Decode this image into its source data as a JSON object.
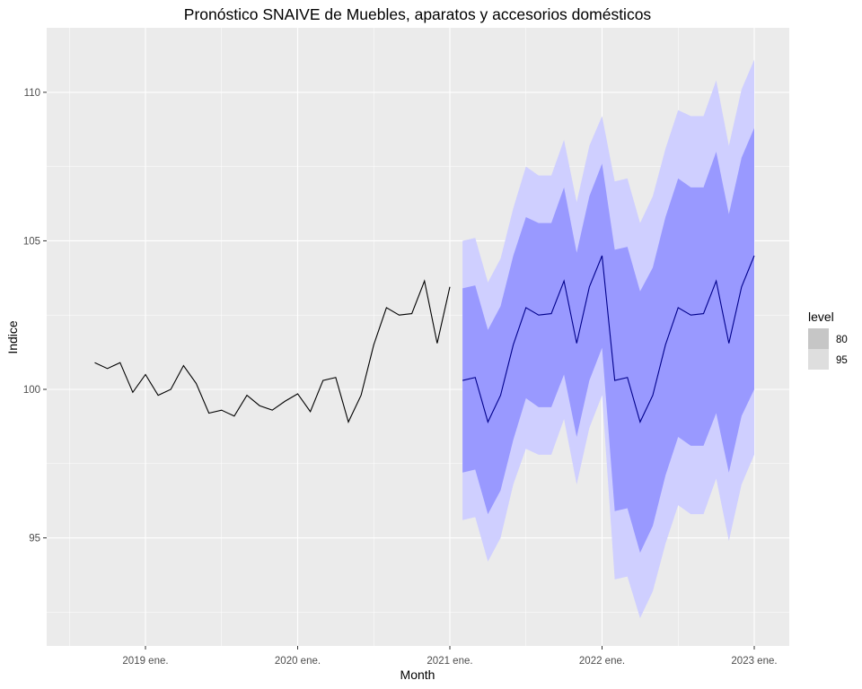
{
  "chart_data": {
    "type": "line",
    "title": "Pronóstico SNAIVE de Muebles, aparatos y accesorios domésticos",
    "xlabel": "Month",
    "ylabel": "Indice",
    "x_ticks": [
      "2019 ene.",
      "2020 ene.",
      "2021 ene.",
      "2022 ene.",
      "2023 ene."
    ],
    "y_ticks": [
      95,
      100,
      105,
      110
    ],
    "ylim": [
      91.5,
      111.2
    ],
    "xlim": [
      "2018 jul.",
      "2023 feb."
    ],
    "grid": true,
    "legend": {
      "title": "level",
      "position": "right",
      "entries": [
        {
          "label": "80",
          "color": "#c6c6c6"
        },
        {
          "label": "95",
          "color": "#dedede"
        }
      ]
    },
    "colors": {
      "history": "#000000",
      "forecast": "#00008b",
      "band80": "#9999ff",
      "band95": "#cfcfff",
      "panel": "#ebebeb",
      "grid": "#ffffff"
    },
    "history": {
      "name": "",
      "x": [
        "2018 sep.",
        "2018 oct.",
        "2018 nov.",
        "2018 dic.",
        "2019 ene.",
        "2019 feb.",
        "2019 mar.",
        "2019 abr.",
        "2019 may.",
        "2019 jun.",
        "2019 jul.",
        "2019 ago.",
        "2019 sep.",
        "2019 oct.",
        "2019 nov.",
        "2019 dic.",
        "2020 ene.",
        "2020 feb.",
        "2020 mar.",
        "2020 abr.",
        "2020 may.",
        "2020 jun.",
        "2020 jul.",
        "2020 ago.",
        "2020 sep.",
        "2020 oct.",
        "2020 nov.",
        "2020 dic.",
        "2021 ene."
      ],
      "values": [
        100.9,
        100.7,
        100.9,
        99.9,
        100.5,
        99.8,
        100.0,
        100.8,
        100.2,
        99.2,
        99.3,
        99.1,
        99.8,
        99.45,
        99.3,
        99.6,
        99.85,
        99.25,
        100.3,
        100.4,
        98.9,
        99.8,
        101.5,
        102.75,
        102.5,
        102.55,
        103.65,
        101.55,
        103.45
      ]
    },
    "forecast": {
      "x": [
        "2021 feb.",
        "2021 mar.",
        "2021 abr.",
        "2021 may.",
        "2021 jun.",
        "2021 jul.",
        "2021 ago.",
        "2021 sep.",
        "2021 oct.",
        "2021 nov.",
        "2021 dic.",
        "2022 ene.",
        "2022 feb.",
        "2022 mar.",
        "2022 abr.",
        "2022 may.",
        "2022 jun.",
        "2022 jul.",
        "2022 ago.",
        "2022 sep.",
        "2022 oct.",
        "2022 nov.",
        "2022 dic.",
        "2023 ene."
      ],
      "mean": [
        100.3,
        100.4,
        98.9,
        99.8,
        101.5,
        102.75,
        102.5,
        102.55,
        103.65,
        101.55,
        103.45,
        104.5,
        100.3,
        100.4,
        98.9,
        99.8,
        101.5,
        102.75,
        102.5,
        102.55,
        103.65,
        101.55,
        103.45,
        104.5
      ],
      "lo80": [
        97.2,
        97.3,
        95.8,
        96.6,
        98.3,
        99.7,
        99.4,
        99.4,
        100.5,
        98.4,
        100.3,
        101.4,
        95.9,
        96.0,
        94.5,
        95.4,
        97.1,
        98.4,
        98.1,
        98.1,
        99.2,
        97.2,
        99.1,
        100.0
      ],
      "hi80": [
        103.4,
        103.5,
        102.0,
        102.8,
        104.5,
        105.8,
        105.6,
        105.6,
        106.8,
        104.6,
        106.5,
        107.6,
        104.7,
        104.8,
        103.3,
        104.1,
        105.8,
        107.1,
        106.8,
        106.8,
        108.0,
        105.9,
        107.8,
        108.8
      ],
      "lo95": [
        95.6,
        95.7,
        94.2,
        95.0,
        96.8,
        98.0,
        97.8,
        97.8,
        99.0,
        96.8,
        98.7,
        99.8,
        93.6,
        93.7,
        92.3,
        93.2,
        94.8,
        96.1,
        95.8,
        95.8,
        97.0,
        94.9,
        96.8,
        97.8
      ],
      "hi95": [
        105.0,
        105.1,
        103.6,
        104.4,
        106.1,
        107.5,
        107.2,
        107.2,
        108.4,
        106.3,
        108.2,
        109.2,
        107.0,
        107.1,
        105.6,
        106.5,
        108.1,
        109.4,
        109.2,
        109.2,
        110.4,
        108.2,
        110.1,
        111.1
      ]
    }
  }
}
